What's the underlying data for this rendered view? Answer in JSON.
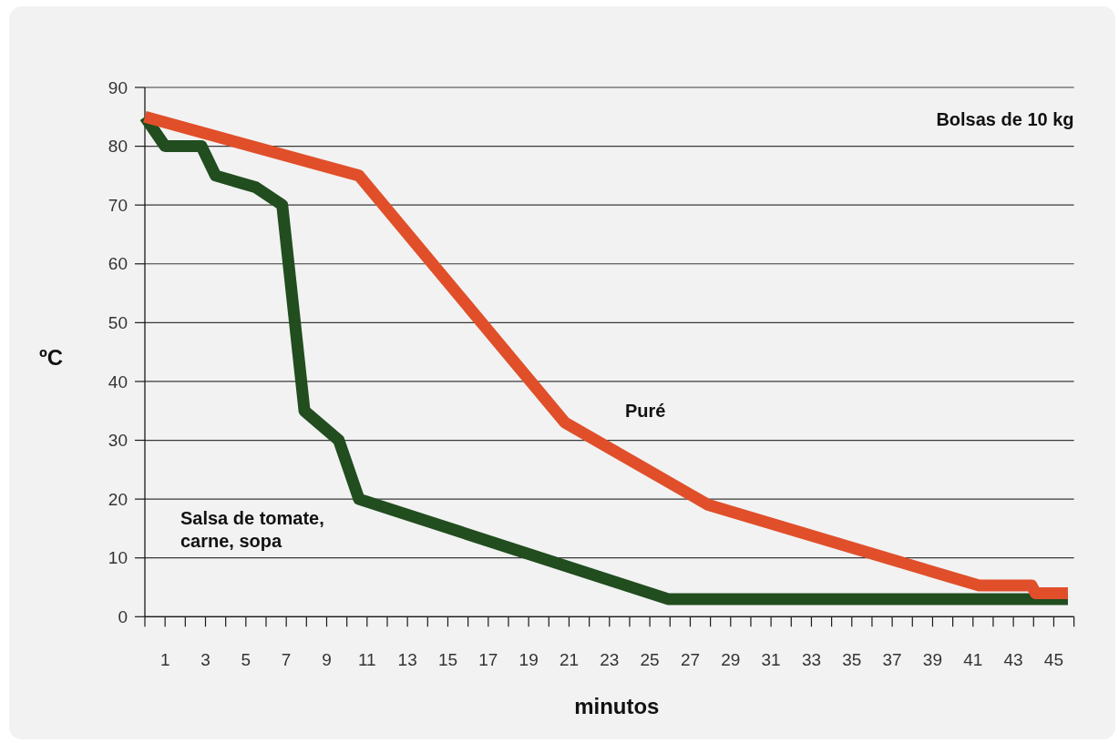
{
  "chart_data": {
    "type": "line",
    "xlabel": "minutos",
    "ylabel": "ºC",
    "annotations": [
      "Bolsas de 10 kg"
    ],
    "xlim": [
      0,
      46
    ],
    "xticks": [
      {
        "value": 0,
        "label": null
      },
      1,
      {
        "value": 2,
        "label": null
      },
      3,
      {
        "value": 4,
        "label": null
      },
      5,
      {
        "value": 6,
        "label": null
      },
      7,
      {
        "value": 8,
        "label": null
      },
      9,
      {
        "value": 10,
        "label": null
      },
      11,
      {
        "value": 12,
        "label": null
      },
      13,
      {
        "value": 14,
        "label": null
      },
      15,
      {
        "value": 16,
        "label": null
      },
      17,
      {
        "value": 18,
        "label": null
      },
      19,
      {
        "value": 20,
        "label": null
      },
      21,
      {
        "value": 22,
        "label": null
      },
      23,
      {
        "value": 24,
        "label": null
      },
      25,
      {
        "value": 26,
        "label": null
      },
      27,
      {
        "value": 28,
        "label": null
      },
      29,
      {
        "value": 30,
        "label": null
      },
      31,
      {
        "value": 32,
        "label": null
      },
      33,
      {
        "value": 34,
        "label": null
      },
      35,
      {
        "value": 36,
        "label": null
      },
      37,
      {
        "value": 38,
        "label": null
      },
      39,
      {
        "value": 40,
        "label": null
      },
      41,
      {
        "value": 42,
        "label": null
      },
      43,
      {
        "value": 44,
        "label": null
      },
      45,
      {
        "value": 46,
        "label": null
      }
    ],
    "ylim": [
      0,
      90
    ],
    "yticks": [
      0,
      10,
      20,
      30,
      40,
      50,
      60,
      70,
      80,
      90
    ],
    "grid": "y",
    "line_style": "solid",
    "series": [
      {
        "name": "Salsa de tomate, carne, sopa",
        "color": "#214d1f",
        "x": [
          0,
          1,
          2.8,
          3.5,
          5.5,
          6.8,
          7.9,
          9.6,
          10.6,
          25.9,
          45.7
        ],
        "values": [
          85,
          80,
          80,
          75,
          73,
          70,
          35,
          30,
          20,
          3,
          3
        ]
      },
      {
        "name": "Puré",
        "color": "#e04f2a",
        "x": [
          0,
          10.6,
          20.8,
          27.9,
          41.3,
          43.9,
          44.1,
          45.7
        ],
        "values": [
          85,
          75,
          33,
          19,
          5.3,
          5.3,
          4,
          4
        ]
      }
    ]
  }
}
